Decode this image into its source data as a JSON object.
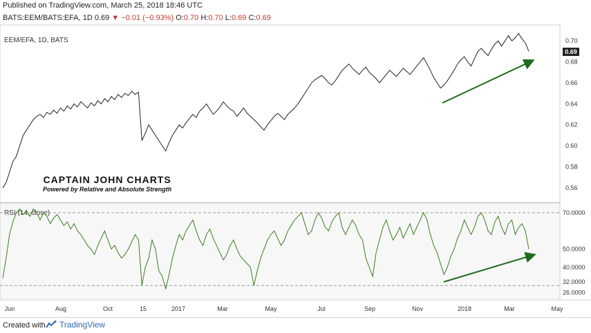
{
  "header": {
    "published": "Published on TradingView.com, March 25, 2018 18:46 UTC",
    "symbol": "BATS:EEM/BATS:EFA, 1D",
    "last": "0.69",
    "change_arrow": "▼",
    "change": "−0.01 (−0.93%)",
    "open_label": "O:",
    "open": "0.70",
    "high_label": "H:",
    "high": "0.70",
    "low_label": "L:",
    "low": "0.69",
    "close_label": "C:",
    "close": "0.69"
  },
  "price_pane": {
    "label": "EEM/EFA, 1D, BATS",
    "last_price_badge": "0.69"
  },
  "rsi_pane": {
    "label": "RSI (14, close)"
  },
  "watermark": {
    "title": "CAPTAIN  JOHN  CHARTS",
    "subtitle": "Powered by Relative and  Absolute Strength"
  },
  "footer": {
    "created_with": "Created with",
    "brand": "TradingView"
  },
  "colors": {
    "price_line": "#222222",
    "rsi_line": "#3a7d1e",
    "arrow": "#1e6b1e",
    "last_badge_bg": "#222222"
  },
  "chart_data": [
    {
      "type": "line",
      "series": [
        {
          "values": [
            0.56,
            0.565,
            0.575,
            0.585,
            0.59,
            0.6,
            0.61,
            0.615,
            0.62,
            0.625,
            0.628,
            0.63,
            0.627,
            0.632,
            0.63,
            0.634,
            0.631,
            0.636,
            0.633,
            0.638,
            0.635,
            0.64,
            0.637,
            0.642,
            0.639,
            0.636,
            0.641,
            0.638,
            0.643,
            0.64,
            0.645,
            0.642,
            0.647,
            0.644,
            0.649,
            0.646,
            0.65,
            0.648,
            0.652,
            0.649,
            0.651,
            0.605,
            0.612,
            0.62,
            0.615,
            0.61,
            0.605,
            0.6,
            0.595,
            0.603,
            0.61,
            0.615,
            0.62,
            0.617,
            0.622,
            0.626,
            0.63,
            0.627,
            0.633,
            0.636,
            0.64,
            0.635,
            0.63,
            0.633,
            0.637,
            0.642,
            0.638,
            0.635,
            0.633,
            0.628,
            0.632,
            0.636,
            0.631,
            0.628,
            0.625,
            0.622,
            0.618,
            0.615,
            0.62,
            0.624,
            0.628,
            0.631,
            0.628,
            0.625,
            0.63,
            0.633,
            0.636,
            0.64,
            0.645,
            0.65,
            0.655,
            0.66,
            0.663,
            0.665,
            0.667,
            0.664,
            0.66,
            0.658,
            0.662,
            0.667,
            0.672,
            0.675,
            0.678,
            0.674,
            0.671,
            0.668,
            0.672,
            0.675,
            0.67,
            0.667,
            0.664,
            0.66,
            0.664,
            0.668,
            0.672,
            0.669,
            0.666,
            0.67,
            0.674,
            0.671,
            0.668,
            0.672,
            0.676,
            0.68,
            0.684,
            0.678,
            0.672,
            0.665,
            0.66,
            0.655,
            0.658,
            0.662,
            0.667,
            0.672,
            0.678,
            0.682,
            0.685,
            0.68,
            0.676,
            0.683,
            0.69,
            0.693,
            0.689,
            0.686,
            0.692,
            0.697,
            0.7,
            0.695,
            0.7,
            0.705,
            0.7,
            0.703,
            0.707,
            0.702,
            0.698,
            0.69
          ]
        }
      ],
      "ylim": [
        0.55,
        0.71
      ],
      "yticks": [
        "0.70",
        "0.68",
        "0.66",
        "0.64",
        "0.62",
        "0.60",
        "0.58",
        "0.56"
      ],
      "annotations": [
        "upward trend arrow from Dec to Mar"
      ]
    },
    {
      "type": "line",
      "series": [
        {
          "values": [
            34,
            45,
            58,
            65,
            70,
            72,
            69,
            71,
            68,
            72,
            70,
            66,
            70,
            68,
            64,
            67,
            69,
            66,
            63,
            65,
            61,
            64,
            60,
            58,
            55,
            52,
            50,
            47,
            52,
            56,
            60,
            55,
            50,
            52,
            48,
            45,
            47,
            50,
            54,
            58,
            55,
            30,
            40,
            45,
            55,
            50,
            38,
            35,
            28,
            36,
            45,
            52,
            58,
            55,
            60,
            63,
            66,
            60,
            55,
            52,
            58,
            61,
            56,
            52,
            48,
            44,
            47,
            52,
            55,
            50,
            46,
            44,
            42,
            40,
            30,
            38,
            45,
            50,
            55,
            58,
            60,
            56,
            52,
            55,
            60,
            63,
            66,
            68,
            70,
            64,
            58,
            60,
            66,
            70,
            67,
            62,
            60,
            65,
            68,
            70,
            62,
            58,
            62,
            66,
            63,
            58,
            55,
            45,
            40,
            35,
            48,
            55,
            62,
            66,
            60,
            55,
            58,
            62,
            56,
            60,
            64,
            58,
            62,
            66,
            70,
            66,
            58,
            52,
            48,
            42,
            36,
            40,
            46,
            50,
            56,
            60,
            66,
            62,
            58,
            62,
            68,
            70,
            66,
            60,
            58,
            65,
            68,
            62,
            58,
            64,
            66,
            58,
            62,
            64,
            60,
            50
          ]
        }
      ],
      "ylim": [
        24,
        73
      ],
      "yticks": [
        "70.0000",
        "50.0000",
        "40.0000",
        "32.0000",
        "26.0000"
      ],
      "reference_lines": [
        70,
        30
      ],
      "annotations": [
        "upward trend arrow from Dec to Mar"
      ]
    }
  ],
  "x_axis": {
    "ticks": [
      "Jun",
      "Aug",
      "Oct",
      "15",
      "2017",
      "Mar",
      "May",
      "Jul",
      "Sep",
      "Nov",
      "2018",
      "Mar",
      "May"
    ]
  }
}
